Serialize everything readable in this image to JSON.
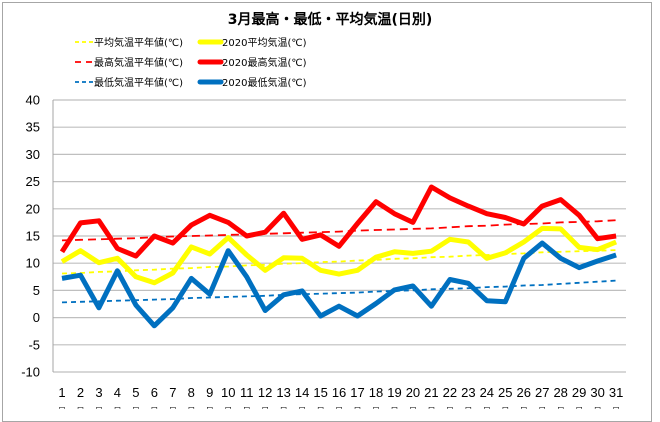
{
  "chart_data": {
    "type": "line",
    "title": "3月最高・最低・平均気温(日別)",
    "xlabel": "",
    "ylabel": "",
    "ylim": [
      -10,
      40
    ],
    "yticks": [
      40,
      35,
      30,
      25,
      20,
      15,
      10,
      5,
      0,
      -5,
      -10
    ],
    "grid": true,
    "legend_position": "top-left",
    "x": [
      1,
      2,
      3,
      4,
      5,
      6,
      7,
      8,
      9,
      10,
      11,
      12,
      13,
      14,
      15,
      16,
      17,
      18,
      19,
      20,
      21,
      22,
      23,
      24,
      25,
      26,
      27,
      28,
      29,
      30,
      31
    ],
    "xtick_sublabel": "□",
    "series": [
      {
        "name": "平均気温平年値(℃)",
        "style": "dashed",
        "color": "#ffff00",
        "values": [
          8.1,
          8.2,
          8.4,
          8.5,
          8.7,
          8.8,
          9.0,
          9.1,
          9.3,
          9.4,
          9.6,
          9.7,
          9.9,
          10.0,
          10.2,
          10.3,
          10.5,
          10.6,
          10.8,
          10.9,
          11.1,
          11.2,
          11.4,
          11.5,
          11.7,
          11.8,
          12.0,
          12.1,
          12.2,
          12.3,
          12.4
        ]
      },
      {
        "name": "2020平均気温(℃)",
        "style": "solid",
        "color": "#ffff00",
        "values": [
          10.3,
          12.3,
          10.1,
          10.9,
          7.5,
          6.4,
          8.2,
          13.0,
          11.7,
          14.7,
          11.5,
          8.7,
          11.0,
          10.9,
          8.7,
          8.0,
          8.7,
          11.1,
          12.1,
          11.8,
          12.2,
          14.4,
          13.9,
          10.9,
          11.9,
          13.9,
          16.4,
          16.3,
          12.9,
          12.5,
          13.9
        ]
      },
      {
        "name": "最高気温平年値(℃)",
        "style": "dashed",
        "color": "#ff0000",
        "values": [
          14.2,
          14.3,
          14.4,
          14.5,
          14.6,
          14.8,
          14.9,
          15.0,
          15.1,
          15.2,
          15.3,
          15.4,
          15.5,
          15.6,
          15.7,
          15.8,
          16.0,
          16.1,
          16.2,
          16.3,
          16.4,
          16.6,
          16.8,
          16.9,
          17.1,
          17.2,
          17.3,
          17.5,
          17.6,
          17.7,
          17.9
        ]
      },
      {
        "name": "2020最高気温(℃)",
        "style": "solid",
        "color": "#ff0000",
        "values": [
          12.1,
          17.4,
          17.8,
          12.7,
          11.3,
          15.0,
          13.7,
          17.0,
          18.8,
          17.5,
          15.0,
          15.7,
          19.2,
          14.4,
          15.2,
          13.1,
          17.3,
          21.3,
          19.1,
          17.5,
          24.0,
          22.0,
          20.5,
          19.1,
          18.4,
          17.2,
          20.5,
          21.7,
          18.8,
          14.5,
          15.0
        ]
      },
      {
        "name": "最低気温平年値(℃)",
        "style": "dashed",
        "color": "#0070c0",
        "values": [
          2.8,
          2.9,
          3.0,
          3.1,
          3.2,
          3.3,
          3.4,
          3.6,
          3.7,
          3.8,
          3.9,
          4.0,
          4.2,
          4.3,
          4.4,
          4.5,
          4.6,
          4.8,
          4.9,
          5.0,
          5.2,
          5.3,
          5.4,
          5.6,
          5.7,
          5.9,
          6.0,
          6.2,
          6.4,
          6.6,
          6.8
        ]
      },
      {
        "name": "2020最低気温(℃)",
        "style": "solid",
        "color": "#0070c0",
        "values": [
          7.2,
          7.8,
          1.8,
          8.6,
          2.3,
          -1.5,
          1.8,
          7.2,
          4.3,
          12.3,
          7.5,
          1.3,
          4.2,
          4.9,
          0.3,
          2.1,
          0.3,
          2.6,
          5.1,
          5.8,
          2.1,
          7.0,
          6.3,
          3.1,
          2.9,
          10.9,
          13.7,
          10.9,
          9.2,
          10.4,
          11.5
        ]
      }
    ]
  },
  "legend": [
    {
      "label": "平均気温平年値(℃)",
      "style": "dashed",
      "color": "#ffff00"
    },
    {
      "label": "2020平均気温(℃)",
      "style": "solid",
      "color": "#ffff00"
    },
    {
      "label": "最高気温平年値(℃)",
      "style": "dashed",
      "color": "#ff0000"
    },
    {
      "label": "2020最高気温(℃)",
      "style": "solid",
      "color": "#ff0000"
    },
    {
      "label": "最低気温平年値(℃)",
      "style": "dashed",
      "color": "#0070c0"
    },
    {
      "label": "2020最低気温(℃)",
      "style": "solid",
      "color": "#0070c0"
    }
  ],
  "colors": {
    "grid": "#bfbfbf",
    "axis": "#a6a6a6",
    "frame": "#a6a6a6"
  }
}
